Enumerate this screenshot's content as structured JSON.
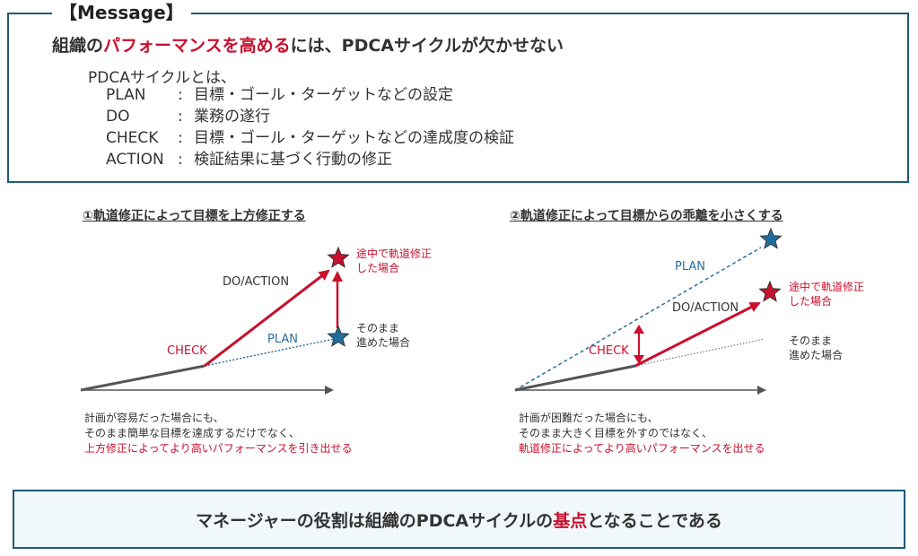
{
  "message": {
    "tag": "【Message】",
    "headline": {
      "part1": "組織の",
      "highlight": "パフォーマンスを高める",
      "part2": "には、PDCAサイクルが欠かせない"
    },
    "intro": "PDCAサイクルとは、",
    "definitions": [
      {
        "term": "PLAN",
        "sep": ":",
        "desc": "目標・ゴール・ターゲットなどの設定"
      },
      {
        "term": "DO",
        "sep": ":",
        "desc": "業務の遂行"
      },
      {
        "term": "CHECK",
        "sep": ":",
        "desc": "目標・ゴール・ターゲットなどの達成度の検証"
      },
      {
        "term": "ACTION",
        "sep": ":",
        "desc": "検証結果に基づく行動の修正"
      }
    ]
  },
  "left_panel": {
    "title": "①軌道修正によって目標を上方修正する",
    "labels": {
      "do_action": "DO/ACTION",
      "check": "CHECK",
      "plan": "PLAN",
      "corrected_line1": "途中で軌道修正",
      "corrected_line2": "した場合",
      "asis_line1": "そのまま",
      "asis_line2": "進めた場合"
    },
    "caption": {
      "line1": "計画が容易だった場合にも、",
      "line2": "そのまま簡単な目標を達成するだけでなく、",
      "line3": "上方修正によってより高いパフォーマンスを引き出せる"
    }
  },
  "right_panel": {
    "title": "②軌道修正によって目標からの乖離を小さくする",
    "labels": {
      "plan": "PLAN",
      "do_action": "DO/ACTION",
      "check": "CHECK",
      "corrected_line1": "途中で軌道修正",
      "corrected_line2": "した場合",
      "asis_line1": "そのまま",
      "asis_line2": "進めた場合"
    },
    "caption": {
      "line1": "計画が困難だった場合にも、",
      "line2": "そのまま大きく目標を外すのではなく、",
      "line3": "軌道修正によってより高いパフォーマンスを出せる"
    }
  },
  "conclusion": {
    "part1": "マネージャーの役割は組織のPDCAサイクルの",
    "highlight": "基点",
    "part2": "となることである"
  },
  "colors": {
    "accent_red": "#c8102e",
    "navy": "#1f5a78",
    "plan_blue": "#2a6f9e",
    "arrow_gray": "#555555"
  }
}
